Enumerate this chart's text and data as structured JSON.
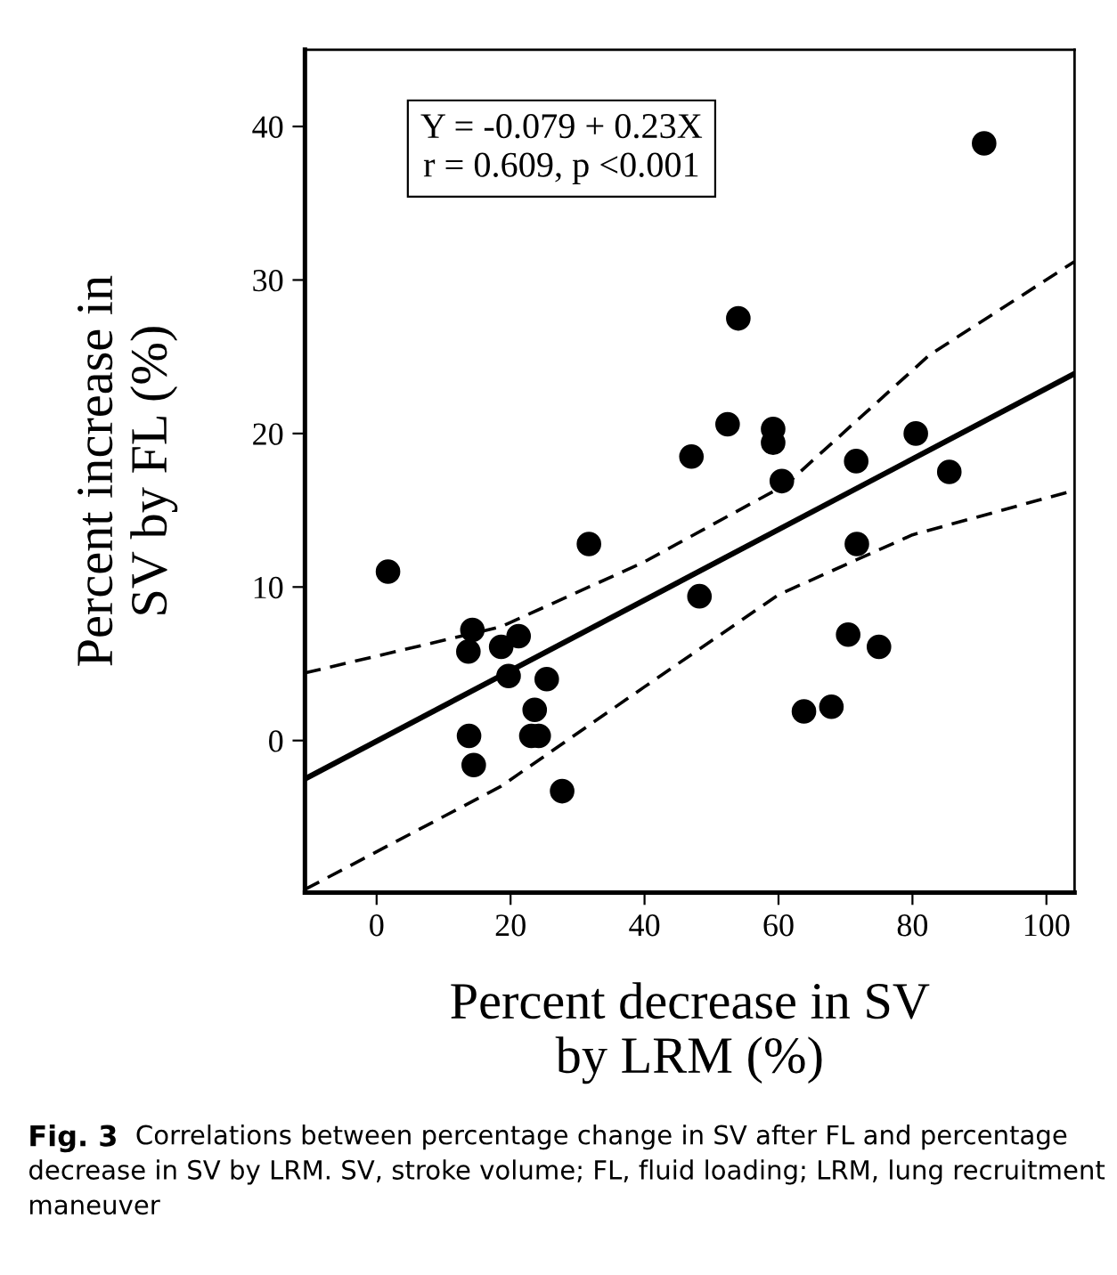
{
  "chart_data": {
    "type": "scatter",
    "xlabel": "Percent decrease in SV\nby LRM (%)",
    "ylabel": "Percent increase in\nSV by FL (%)",
    "xlim": [
      -10.7,
      104.2
    ],
    "ylim": [
      -9.9,
      45
    ],
    "xticks": [
      0,
      20,
      40,
      60,
      80,
      100
    ],
    "yticks": [
      0,
      10,
      20,
      30,
      40
    ],
    "grid": false,
    "legend": false,
    "series": [
      {
        "marker": "circle",
        "color": "#000000",
        "x": [
          90.7,
          54.0,
          52.4,
          47.0,
          59.2,
          59.2,
          60.5,
          71.6,
          80.5,
          85.5,
          1.7,
          31.7,
          71.7,
          48.2,
          14.3,
          13.7,
          18.6,
          21.2,
          19.7,
          25.4,
          23.6,
          23.1,
          24.2,
          13.8,
          14.5,
          27.7,
          70.4,
          75.0,
          63.8,
          67.9
        ],
        "values": [
          38.9,
          27.5,
          20.6,
          18.5,
          20.3,
          19.4,
          16.9,
          18.2,
          20.0,
          17.5,
          11.0,
          12.8,
          12.8,
          9.4,
          7.2,
          5.8,
          6.1,
          6.8,
          4.2,
          4.0,
          2.0,
          0.3,
          0.3,
          0.3,
          -1.6,
          -3.3,
          6.9,
          6.1,
          1.9,
          2.2
        ]
      },
      {
        "type": "line",
        "color": "#000000",
        "line_style": "solid",
        "x": [
          -10.7,
          104.2
        ],
        "values": [
          -2.5,
          23.9
        ]
      },
      {
        "type": "line",
        "color": "#000000",
        "line_style": "dashed",
        "x": [
          -10.7,
          18.5,
          39.8,
          61.2,
          82.5,
          104.2
        ],
        "values": [
          4.4,
          7.4,
          11.6,
          16.7,
          25.1,
          31.2
        ]
      },
      {
        "type": "line",
        "color": "#000000",
        "line_style": "dashed",
        "x": [
          -10.7,
          18.5,
          40,
          60,
          80,
          104.2
        ],
        "values": [
          -9.7,
          -3.0,
          3.5,
          9.5,
          13.4,
          16.3
        ]
      }
    ],
    "annotations": [
      "Y = -0.079 + 0.23X\nr = 0.609, p <0.001",
      "Fig. 3",
      "Correlations between percentage change in SV after FL and percentage decrease in SV by LRM. SV, stroke volume; FL, fluid loading; LRM, lung recruitment maneuver"
    ]
  }
}
